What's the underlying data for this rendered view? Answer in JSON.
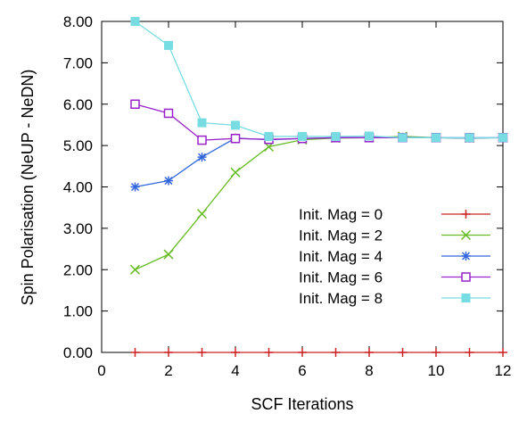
{
  "chart_data": {
    "type": "line",
    "xlabel": "SCF Iterations",
    "ylabel": "Spin Polarisation (NeUP - NeDN)",
    "xlim": [
      0,
      12
    ],
    "ylim": [
      0,
      8
    ],
    "x_ticks": [
      "0",
      "2",
      "4",
      "6",
      "8",
      "10",
      "12"
    ],
    "y_ticks": [
      "0.00",
      "1.00",
      "2.00",
      "3.00",
      "4.00",
      "5.00",
      "6.00",
      "7.00",
      "8.00"
    ],
    "grid": false,
    "legend_position": "right-center",
    "x": [
      1,
      2,
      3,
      4,
      5,
      6,
      7,
      8,
      9,
      10,
      11,
      12
    ],
    "series": [
      {
        "name": "Init. Mag = 0",
        "color": "#cc2222",
        "marker": "plus",
        "values": [
          0,
          0,
          0,
          0,
          0,
          0,
          0,
          0,
          0,
          0,
          0,
          0
        ]
      },
      {
        "name": "Init. Mag = 2",
        "color": "#66bb22",
        "marker": "cross",
        "values": [
          2.0,
          2.37,
          3.35,
          4.35,
          4.97,
          5.14,
          5.18,
          5.19,
          5.22,
          5.19,
          5.18,
          5.19
        ]
      },
      {
        "name": "Init. Mag = 4",
        "color": "#3366dd",
        "marker": "star",
        "values": [
          4.0,
          4.15,
          4.72,
          5.18,
          5.14,
          5.17,
          5.19,
          5.19,
          5.2,
          5.19,
          5.18,
          5.19
        ]
      },
      {
        "name": "Init. Mag = 6",
        "color": "#9922cc",
        "marker": "open-square",
        "values": [
          6.0,
          5.78,
          5.13,
          5.17,
          5.15,
          5.17,
          5.19,
          5.19,
          5.19,
          5.19,
          5.19,
          5.19
        ]
      },
      {
        "name": "Init. Mag = 8",
        "color": "#77dde2",
        "marker": "filled-square",
        "values": [
          8.0,
          7.42,
          5.55,
          5.49,
          5.22,
          5.22,
          5.22,
          5.23,
          5.19,
          5.19,
          5.19,
          5.19
        ]
      }
    ]
  }
}
